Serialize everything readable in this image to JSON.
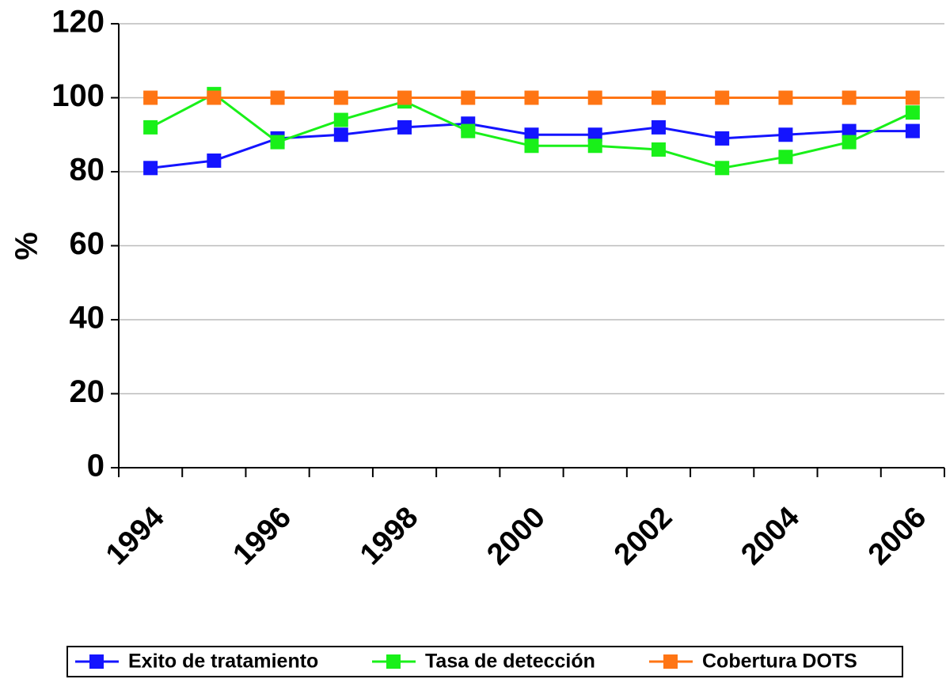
{
  "chart_data": {
    "type": "line",
    "y_label": "%",
    "categories": [
      "1994",
      null,
      "1996",
      null,
      "1998",
      null,
      "2000",
      null,
      "2002",
      null,
      "2004",
      null,
      "2006"
    ],
    "series": [
      {
        "name": "Exito de tratamiento",
        "color": "#1414ff",
        "values": [
          81,
          83,
          89,
          90,
          92,
          93,
          90,
          90,
          92,
          89,
          90,
          91,
          91
        ]
      },
      {
        "name": "Tasa de detección",
        "color": "#19f019",
        "values": [
          92,
          101,
          88,
          94,
          99,
          91,
          87,
          87,
          86,
          81,
          84,
          88,
          96
        ]
      },
      {
        "name": "Cobertura DOTS",
        "color": "#ff7514",
        "values": [
          100,
          100,
          100,
          100,
          100,
          100,
          100,
          100,
          100,
          100,
          100,
          100,
          100
        ]
      }
    ],
    "ylim": [
      0,
      120
    ],
    "yticks": [
      0,
      20,
      40,
      60,
      80,
      100,
      120
    ],
    "grid": true,
    "legend": "bottom"
  }
}
